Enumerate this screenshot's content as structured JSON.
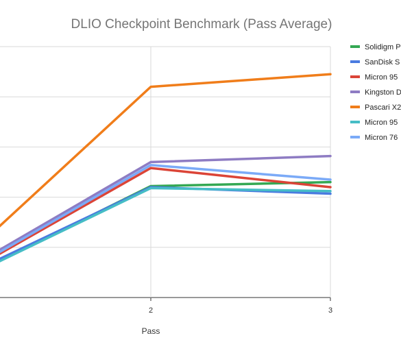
{
  "chart_data": {
    "type": "line",
    "title": "DLIO Checkpoint Benchmark (Pass Average)",
    "xlabel": "Pass",
    "ylabel": "",
    "x": [
      1,
      2,
      3
    ],
    "x_tick_labels": [
      "2",
      "3"
    ],
    "ylim": [
      0,
      5
    ],
    "y_gridlines": [
      0,
      1,
      2,
      3,
      4,
      5
    ],
    "grid": true,
    "legend_position": "right",
    "series": [
      {
        "name": "Solidigm P",
        "color": "#34a853",
        "values": [
          0.45,
          2.22,
          2.3
        ]
      },
      {
        "name": "SanDisk S",
        "color": "#4a7be0",
        "values": [
          0.5,
          2.2,
          2.07
        ]
      },
      {
        "name": "Micron 95",
        "color": "#db4437",
        "values": [
          0.55,
          2.58,
          2.2
        ]
      },
      {
        "name": "Kingston D",
        "color": "#8e7cc3",
        "values": [
          0.62,
          2.7,
          2.82
        ]
      },
      {
        "name": "Pascari X2",
        "color": "#f07d1a",
        "values": [
          0.9,
          4.2,
          4.45
        ]
      },
      {
        "name": "Micron 95",
        "color": "#46bdc6",
        "values": [
          0.45,
          2.18,
          2.12
        ]
      },
      {
        "name": "Micron 76",
        "color": "#7baaf7",
        "values": [
          0.58,
          2.64,
          2.35
        ]
      }
    ]
  }
}
